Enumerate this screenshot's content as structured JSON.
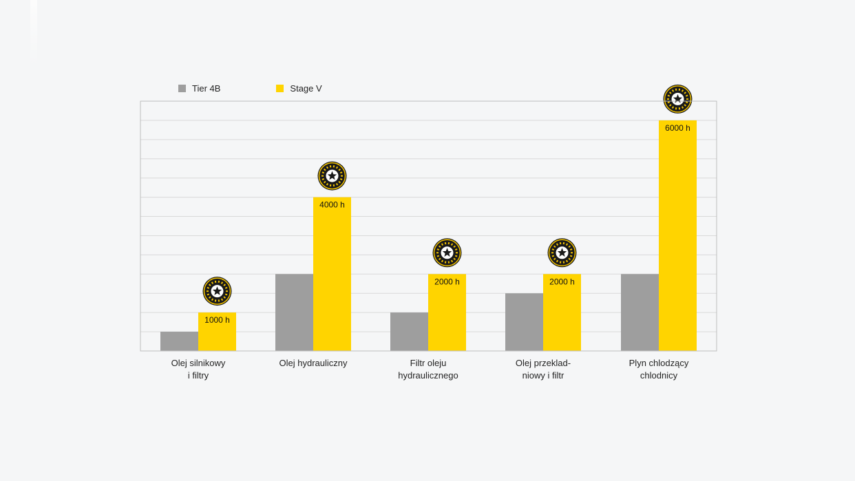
{
  "colors": {
    "background": "#f5f6f7",
    "grid": "#d9d9d9",
    "frame": "#bdbdbd",
    "tier4b": "#9e9e9e",
    "stagev": "#ffd400",
    "badge_dark": "#1a1a1a",
    "badge_ring": "#f2c300"
  },
  "chart_data": {
    "type": "bar",
    "title": "",
    "xlabel": "",
    "ylabel": "",
    "ylim": [
      0,
      6500
    ],
    "y_grid_step": 500,
    "grid": true,
    "legend_position": "top-left",
    "categories": [
      "Olej silnikowy\ni filtry",
      "Olej hydrauliczny",
      "Filtr oleju\nhydraulicznego",
      "Olej przeklad-\nniowy i filtr",
      "Plyn chlodzący\nchlodnicy"
    ],
    "series": [
      {
        "name": "Tier 4B",
        "color": "#9e9e9e",
        "values": [
          500,
          2000,
          1000,
          1500,
          2000
        ]
      },
      {
        "name": "Stage V",
        "color": "#ffd400",
        "values": [
          1000,
          4000,
          2000,
          2000,
          6000
        ],
        "data_labels": [
          "1000 h",
          "4000 h",
          "2000 h",
          "2000 h",
          "6000 h"
        ]
      }
    ],
    "badges": {
      "icon": "best-in-class-badge-icon",
      "text": "BEST IN CLASS",
      "series": "Stage V",
      "categories": [
        0,
        1,
        2,
        3,
        4
      ]
    }
  }
}
